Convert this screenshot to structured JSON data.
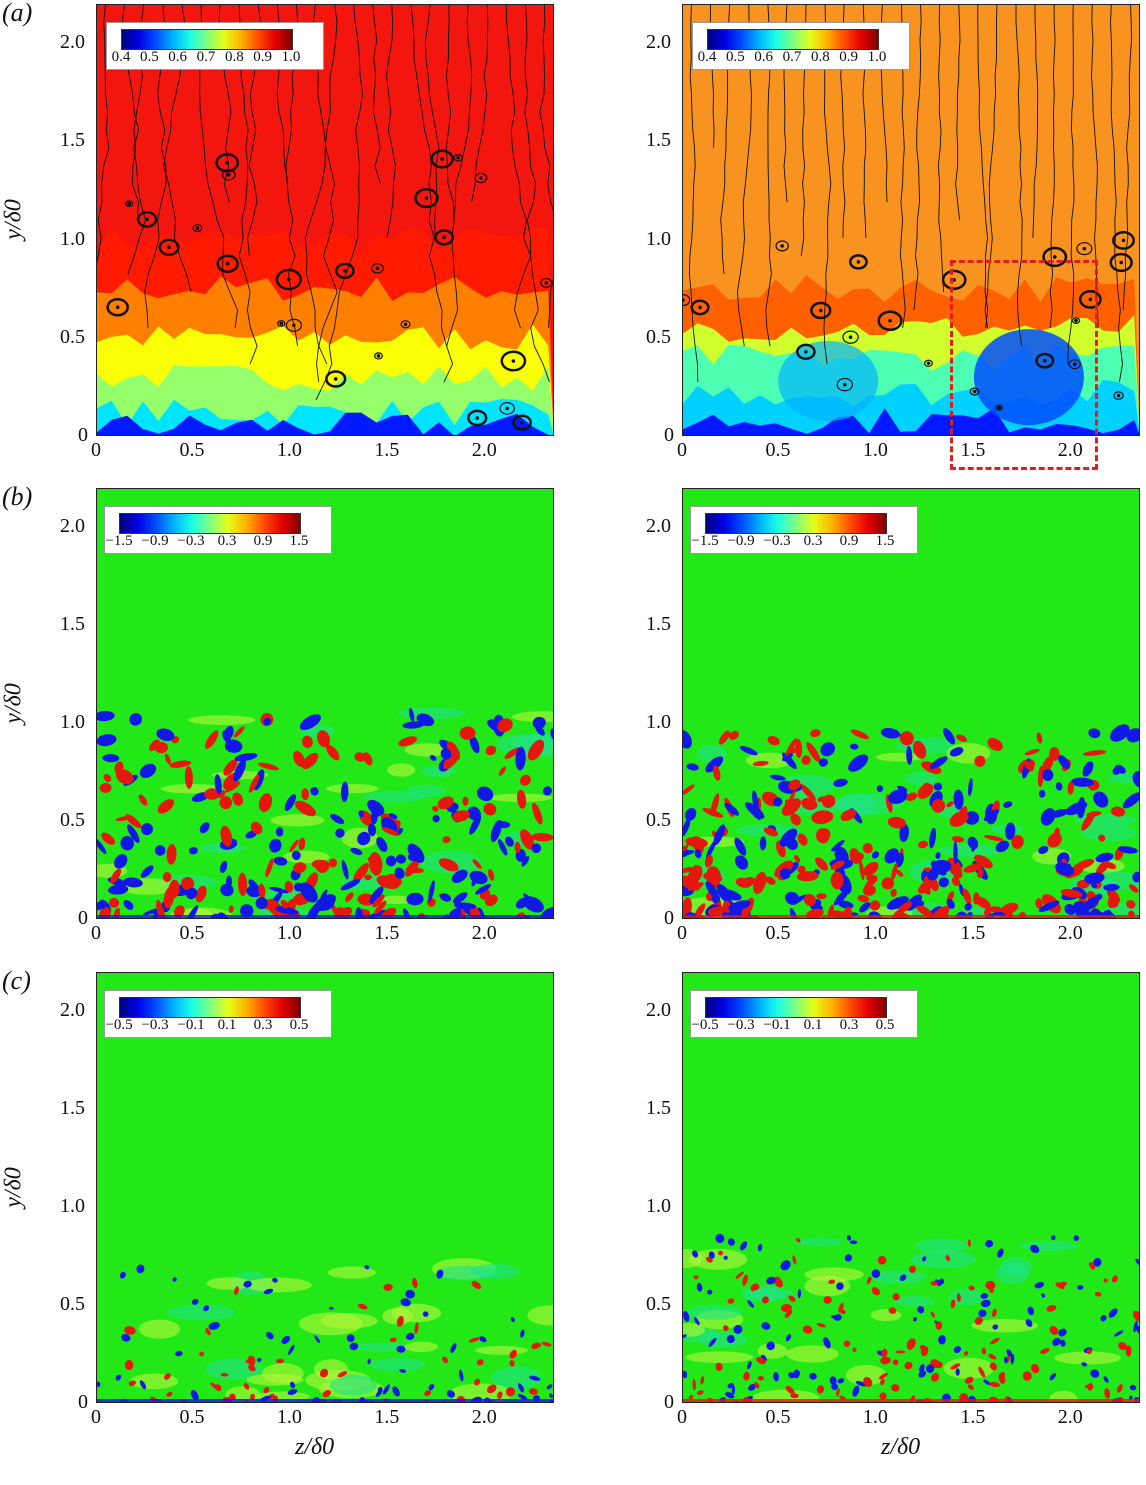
{
  "panels": [
    {
      "label": "(a)",
      "colorbar_ticks": [
        "0.4",
        "0.5",
        "0.6",
        "0.7",
        "0.8",
        "0.9",
        "1.0"
      ]
    },
    {
      "label": "(b)",
      "colorbar_ticks": [
        "−1.5",
        "−0.9",
        "−0.3",
        "0.3",
        "0.9",
        "1.5"
      ]
    },
    {
      "label": "(c)",
      "colorbar_ticks": [
        "−0.5",
        "−0.3",
        "−0.1",
        "0.1",
        "0.3",
        "0.5"
      ]
    }
  ],
  "axes": {
    "ylabel": "y/δ0",
    "xlabel": "z/δ0",
    "yticks": [
      "0",
      "0.5",
      "1.0",
      "1.5",
      "2.0"
    ],
    "xticks": [
      "0",
      "0.5",
      "1.0",
      "1.5",
      "2.0"
    ]
  },
  "colors": {
    "highlight_box": "#e21d1d"
  }
}
